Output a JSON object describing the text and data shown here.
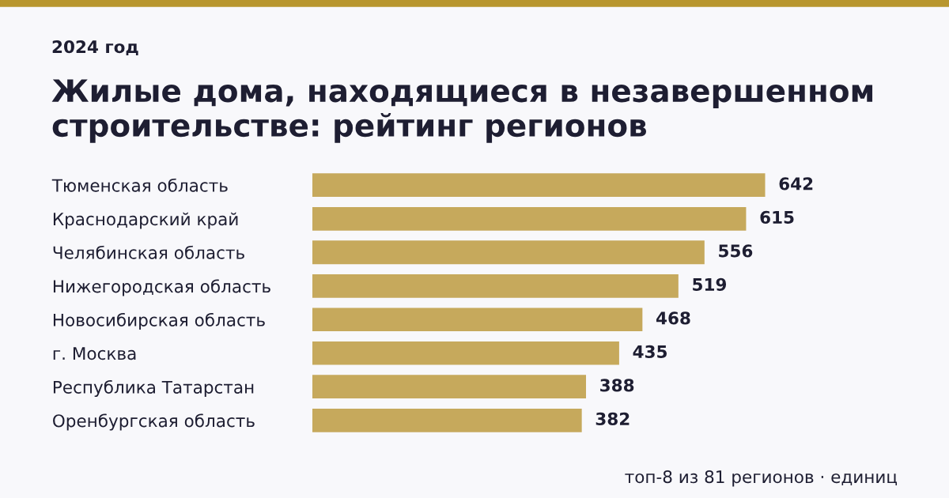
{
  "chart_data": {
    "type": "bar",
    "orientation": "horizontal",
    "subtitle": "2024 год",
    "title": "Жилые дома, находящиеся в незавершенном строительстве: рейтинг регионов",
    "categories": [
      "Тюменская область",
      "Краснодарский край",
      "Челябинская область",
      "Нижегородская область",
      "Новосибирская область",
      "г. Москва",
      "Республика Татарстан",
      "Оренбургская область"
    ],
    "values": [
      642,
      615,
      556,
      519,
      468,
      435,
      388,
      382
    ],
    "color": "#c6a95c",
    "data_labels": true,
    "grid": false,
    "legend": false,
    "tick_labels": "y",
    "annotations": [
      "топ-8 из 81 регионов · единиц"
    ]
  }
}
